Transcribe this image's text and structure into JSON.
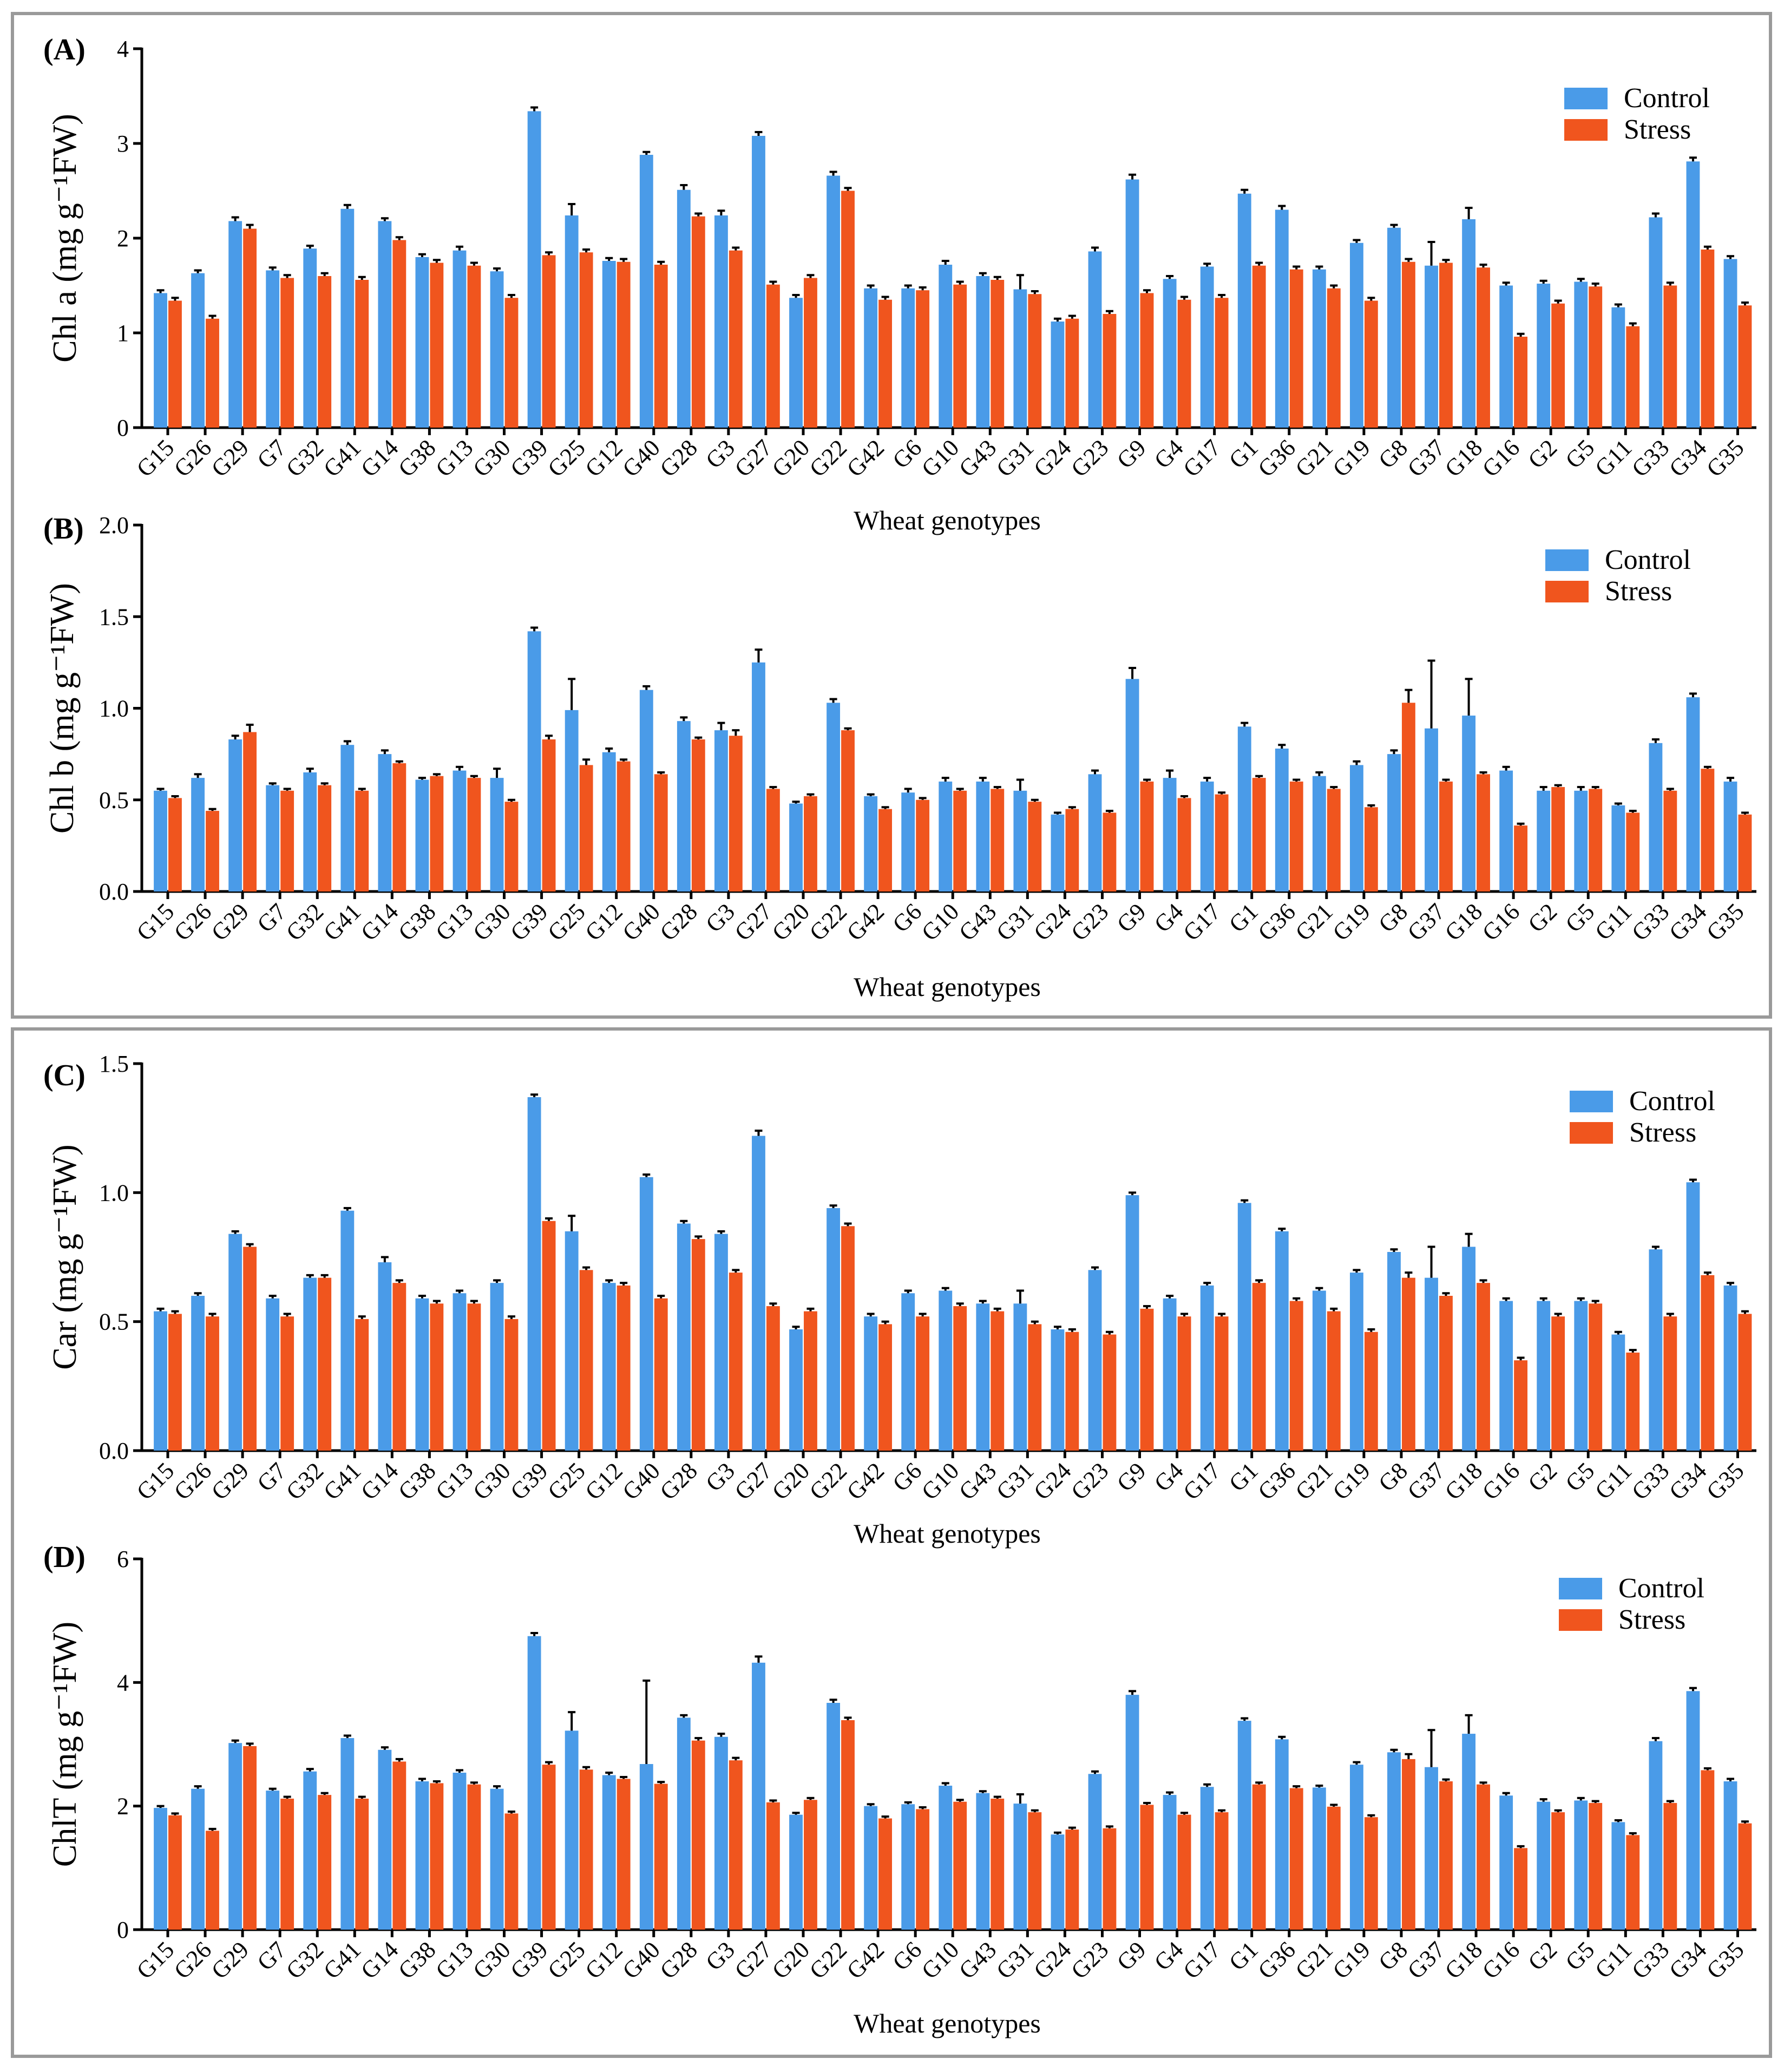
{
  "colors": {
    "control": "#4a9be8",
    "stress": "#f0551e"
  },
  "legend": {
    "control": "Control",
    "stress": "Stress"
  },
  "chart_data": [
    {
      "type": "bar",
      "panel": "(A)",
      "ylabel": "Chl a (mg g⁻¹FW)",
      "xlabel": "Wheat genotypes",
      "ylim": [
        0,
        4
      ],
      "yticks": [
        "0",
        "1",
        "2",
        "3",
        "4"
      ],
      "yticks_values": [
        0,
        1,
        2,
        3,
        4
      ],
      "categories": [
        "G15",
        "G26",
        "G29",
        "G7",
        "G32",
        "G41",
        "G14",
        "G38",
        "G13",
        "G30",
        "G39",
        "G25",
        "G12",
        "G40",
        "G28",
        "G3",
        "G27",
        "G20",
        "G22",
        "G42",
        "G6",
        "G10",
        "G43",
        "G31",
        "G24",
        "G23",
        "G9",
        "G4",
        "G17",
        "G1",
        "G36",
        "G21",
        "G19",
        "G8",
        "G37",
        "G18",
        "G16",
        "G2",
        "G5",
        "G11",
        "G33",
        "G34",
        "G35"
      ],
      "series": [
        {
          "name": "Control",
          "values": [
            1.42,
            1.63,
            2.18,
            1.66,
            1.89,
            2.31,
            2.18,
            1.8,
            1.87,
            1.65,
            3.34,
            2.24,
            1.76,
            2.88,
            2.51,
            2.24,
            3.08,
            1.37,
            2.66,
            1.47,
            1.47,
            1.72,
            1.6,
            1.46,
            1.12,
            1.86,
            2.62,
            1.57,
            1.7,
            2.47,
            2.3,
            1.67,
            1.95,
            2.11,
            1.71,
            2.2,
            1.5,
            1.52,
            1.54,
            1.27,
            2.22,
            2.81,
            1.78
          ],
          "errors": [
            0.03,
            0.03,
            0.04,
            0.03,
            0.03,
            0.04,
            0.03,
            0.03,
            0.04,
            0.03,
            0.04,
            0.12,
            0.03,
            0.03,
            0.05,
            0.05,
            0.04,
            0.03,
            0.04,
            0.03,
            0.03,
            0.04,
            0.03,
            0.15,
            0.03,
            0.04,
            0.05,
            0.03,
            0.03,
            0.04,
            0.04,
            0.03,
            0.03,
            0.03,
            0.25,
            0.12,
            0.03,
            0.03,
            0.03,
            0.03,
            0.04,
            0.04,
            0.03
          ]
        },
        {
          "name": "Stress",
          "values": [
            1.34,
            1.15,
            2.1,
            1.58,
            1.6,
            1.56,
            1.98,
            1.74,
            1.71,
            1.37,
            1.82,
            1.85,
            1.75,
            1.72,
            2.23,
            1.87,
            1.51,
            1.58,
            2.5,
            1.35,
            1.45,
            1.51,
            1.56,
            1.41,
            1.15,
            1.2,
            1.42,
            1.35,
            1.37,
            1.71,
            1.67,
            1.47,
            1.34,
            1.75,
            1.74,
            1.69,
            0.96,
            1.31,
            1.49,
            1.07,
            1.5,
            1.88,
            1.29
          ],
          "errors": [
            0.03,
            0.03,
            0.04,
            0.03,
            0.03,
            0.03,
            0.03,
            0.03,
            0.03,
            0.03,
            0.03,
            0.03,
            0.03,
            0.03,
            0.03,
            0.03,
            0.03,
            0.03,
            0.03,
            0.03,
            0.03,
            0.03,
            0.03,
            0.03,
            0.03,
            0.03,
            0.03,
            0.03,
            0.03,
            0.03,
            0.03,
            0.03,
            0.03,
            0.03,
            0.03,
            0.03,
            0.03,
            0.03,
            0.03,
            0.03,
            0.03,
            0.03,
            0.03
          ]
        }
      ]
    },
    {
      "type": "bar",
      "panel": "(B)",
      "ylabel": "Chl b (mg g⁻¹FW)",
      "xlabel": "Wheat genotypes",
      "ylim": [
        0,
        2.0
      ],
      "yticks": [
        "0.0",
        "0.5",
        "1.0",
        "1.5",
        "2.0"
      ],
      "yticks_values": [
        0,
        0.5,
        1.0,
        1.5,
        2.0
      ],
      "categories": [
        "G15",
        "G26",
        "G29",
        "G7",
        "G32",
        "G41",
        "G14",
        "G38",
        "G13",
        "G30",
        "G39",
        "G25",
        "G12",
        "G40",
        "G28",
        "G3",
        "G27",
        "G20",
        "G22",
        "G42",
        "G6",
        "G10",
        "G43",
        "G31",
        "G24",
        "G23",
        "G9",
        "G4",
        "G17",
        "G1",
        "G36",
        "G21",
        "G19",
        "G8",
        "G37",
        "G18",
        "G16",
        "G2",
        "G5",
        "G11",
        "G33",
        "G34",
        "G35"
      ],
      "series": [
        {
          "name": "Control",
          "values": [
            0.55,
            0.62,
            0.83,
            0.58,
            0.65,
            0.8,
            0.75,
            0.61,
            0.66,
            0.62,
            1.42,
            0.99,
            0.76,
            1.1,
            0.93,
            0.88,
            1.25,
            0.48,
            1.03,
            0.52,
            0.54,
            0.6,
            0.6,
            0.55,
            0.42,
            0.64,
            1.16,
            0.62,
            0.6,
            0.9,
            0.78,
            0.63,
            0.69,
            0.75,
            0.89,
            0.96,
            0.66,
            0.55,
            0.55,
            0.47,
            0.81,
            1.06,
            0.6
          ],
          "errors": [
            0.01,
            0.02,
            0.02,
            0.01,
            0.02,
            0.02,
            0.02,
            0.01,
            0.02,
            0.05,
            0.02,
            0.17,
            0.02,
            0.02,
            0.02,
            0.04,
            0.07,
            0.01,
            0.02,
            0.01,
            0.02,
            0.02,
            0.02,
            0.06,
            0.01,
            0.02,
            0.06,
            0.04,
            0.02,
            0.02,
            0.02,
            0.02,
            0.02,
            0.02,
            0.37,
            0.2,
            0.02,
            0.02,
            0.02,
            0.01,
            0.02,
            0.02,
            0.02
          ]
        },
        {
          "name": "Stress",
          "values": [
            0.51,
            0.44,
            0.87,
            0.55,
            0.58,
            0.55,
            0.7,
            0.63,
            0.62,
            0.49,
            0.83,
            0.69,
            0.71,
            0.64,
            0.83,
            0.85,
            0.56,
            0.52,
            0.88,
            0.45,
            0.5,
            0.55,
            0.56,
            0.49,
            0.45,
            0.43,
            0.6,
            0.51,
            0.53,
            0.62,
            0.6,
            0.56,
            0.46,
            1.03,
            0.6,
            0.64,
            0.36,
            0.57,
            0.56,
            0.43,
            0.55,
            0.67,
            0.42
          ],
          "errors": [
            0.01,
            0.01,
            0.04,
            0.01,
            0.01,
            0.01,
            0.01,
            0.01,
            0.01,
            0.01,
            0.02,
            0.03,
            0.01,
            0.01,
            0.01,
            0.03,
            0.01,
            0.01,
            0.01,
            0.01,
            0.01,
            0.01,
            0.01,
            0.01,
            0.01,
            0.01,
            0.01,
            0.01,
            0.01,
            0.01,
            0.01,
            0.01,
            0.01,
            0.07,
            0.01,
            0.01,
            0.01,
            0.01,
            0.01,
            0.01,
            0.01,
            0.01,
            0.01
          ]
        }
      ]
    },
    {
      "type": "bar",
      "panel": "(C)",
      "ylabel": "Car (mg g⁻¹FW)",
      "xlabel": "Wheat genotypes",
      "ylim": [
        0,
        1.5
      ],
      "yticks": [
        "0.0",
        "0.5",
        "1.0",
        "1.5"
      ],
      "yticks_values": [
        0,
        0.5,
        1.0,
        1.5
      ],
      "categories": [
        "G15",
        "G26",
        "G29",
        "G7",
        "G32",
        "G41",
        "G14",
        "G38",
        "G13",
        "G30",
        "G39",
        "G25",
        "G12",
        "G40",
        "G28",
        "G3",
        "G27",
        "G20",
        "G22",
        "G42",
        "G6",
        "G10",
        "G43",
        "G31",
        "G24",
        "G23",
        "G9",
        "G4",
        "G17",
        "G1",
        "G36",
        "G21",
        "G19",
        "G8",
        "G37",
        "G18",
        "G16",
        "G2",
        "G5",
        "G11",
        "G33",
        "G34",
        "G35"
      ],
      "series": [
        {
          "name": "Control",
          "values": [
            0.54,
            0.6,
            0.84,
            0.59,
            0.67,
            0.93,
            0.73,
            0.59,
            0.61,
            0.65,
            1.37,
            0.85,
            0.65,
            1.06,
            0.88,
            0.84,
            1.22,
            0.47,
            0.94,
            0.52,
            0.61,
            0.62,
            0.57,
            0.57,
            0.47,
            0.7,
            0.99,
            0.59,
            0.64,
            0.96,
            0.85,
            0.62,
            0.69,
            0.77,
            0.67,
            0.79,
            0.58,
            0.58,
            0.58,
            0.45,
            0.78,
            1.04,
            0.64
          ],
          "errors": [
            0.01,
            0.01,
            0.01,
            0.01,
            0.01,
            0.01,
            0.02,
            0.01,
            0.01,
            0.01,
            0.01,
            0.06,
            0.01,
            0.01,
            0.01,
            0.01,
            0.02,
            0.01,
            0.01,
            0.01,
            0.01,
            0.01,
            0.01,
            0.05,
            0.01,
            0.01,
            0.01,
            0.01,
            0.01,
            0.01,
            0.01,
            0.01,
            0.01,
            0.01,
            0.12,
            0.05,
            0.01,
            0.01,
            0.01,
            0.01,
            0.01,
            0.01,
            0.01
          ]
        },
        {
          "name": "Stress",
          "values": [
            0.53,
            0.52,
            0.79,
            0.52,
            0.67,
            0.51,
            0.65,
            0.57,
            0.57,
            0.51,
            0.89,
            0.7,
            0.64,
            0.59,
            0.82,
            0.69,
            0.56,
            0.54,
            0.87,
            0.49,
            0.52,
            0.56,
            0.54,
            0.49,
            0.46,
            0.45,
            0.55,
            0.52,
            0.52,
            0.65,
            0.58,
            0.54,
            0.46,
            0.67,
            0.6,
            0.65,
            0.35,
            0.52,
            0.57,
            0.38,
            0.52,
            0.68,
            0.53
          ],
          "errors": [
            0.01,
            0.01,
            0.01,
            0.01,
            0.01,
            0.01,
            0.01,
            0.01,
            0.01,
            0.01,
            0.01,
            0.01,
            0.01,
            0.01,
            0.01,
            0.01,
            0.01,
            0.01,
            0.01,
            0.01,
            0.01,
            0.01,
            0.01,
            0.01,
            0.01,
            0.01,
            0.01,
            0.01,
            0.01,
            0.01,
            0.01,
            0.01,
            0.01,
            0.02,
            0.01,
            0.01,
            0.01,
            0.01,
            0.01,
            0.01,
            0.01,
            0.01,
            0.01
          ]
        }
      ]
    },
    {
      "type": "bar",
      "panel": "(D)",
      "ylabel": "ChlT (mg g⁻¹FW)",
      "xlabel": "Wheat genotypes",
      "ylim": [
        0,
        6
      ],
      "yticks": [
        "0",
        "2",
        "4",
        "6"
      ],
      "yticks_values": [
        0,
        2,
        4,
        6
      ],
      "categories": [
        "G15",
        "G26",
        "G29",
        "G7",
        "G32",
        "G41",
        "G14",
        "G38",
        "G13",
        "G30",
        "G39",
        "G25",
        "G12",
        "G40",
        "G28",
        "G3",
        "G27",
        "G20",
        "G22",
        "G42",
        "G6",
        "G10",
        "G43",
        "G31",
        "G24",
        "G23",
        "G9",
        "G4",
        "G17",
        "G1",
        "G36",
        "G21",
        "G19",
        "G8",
        "G37",
        "G18",
        "G16",
        "G2",
        "G5",
        "G11",
        "G33",
        "G34",
        "G35"
      ],
      "series": [
        {
          "name": "Control",
          "values": [
            1.97,
            2.28,
            3.02,
            2.25,
            2.56,
            3.1,
            2.91,
            2.4,
            2.54,
            2.28,
            4.75,
            3.22,
            2.5,
            2.68,
            3.43,
            3.12,
            4.32,
            1.86,
            3.67,
            2.0,
            2.03,
            2.33,
            2.21,
            2.04,
            1.54,
            2.52,
            3.8,
            2.18,
            2.31,
            3.38,
            3.08,
            2.3,
            2.67,
            2.87,
            2.63,
            3.17,
            2.17,
            2.07,
            2.09,
            1.74,
            3.05,
            3.86,
            2.4
          ],
          "errors": [
            0.03,
            0.04,
            0.04,
            0.03,
            0.04,
            0.04,
            0.04,
            0.04,
            0.04,
            0.04,
            0.05,
            0.3,
            0.04,
            1.35,
            0.04,
            0.05,
            0.1,
            0.03,
            0.05,
            0.03,
            0.03,
            0.04,
            0.03,
            0.15,
            0.03,
            0.04,
            0.06,
            0.04,
            0.04,
            0.04,
            0.04,
            0.03,
            0.04,
            0.04,
            0.6,
            0.3,
            0.04,
            0.04,
            0.04,
            0.03,
            0.05,
            0.05,
            0.04
          ]
        },
        {
          "name": "Stress",
          "values": [
            1.85,
            1.6,
            2.97,
            2.12,
            2.18,
            2.12,
            2.72,
            2.37,
            2.35,
            1.88,
            2.67,
            2.59,
            2.44,
            2.36,
            3.06,
            2.74,
            2.06,
            2.1,
            3.39,
            1.8,
            1.95,
            2.07,
            2.12,
            1.9,
            1.62,
            1.64,
            2.02,
            1.86,
            1.9,
            2.35,
            2.29,
            1.99,
            1.82,
            2.76,
            2.4,
            2.35,
            1.32,
            1.9,
            2.05,
            1.53,
            2.05,
            2.58,
            1.72
          ],
          "errors": [
            0.03,
            0.03,
            0.04,
            0.03,
            0.03,
            0.03,
            0.04,
            0.03,
            0.03,
            0.03,
            0.04,
            0.04,
            0.03,
            0.03,
            0.04,
            0.04,
            0.03,
            0.03,
            0.04,
            0.03,
            0.03,
            0.03,
            0.03,
            0.03,
            0.03,
            0.03,
            0.03,
            0.03,
            0.03,
            0.03,
            0.03,
            0.03,
            0.03,
            0.08,
            0.03,
            0.03,
            0.03,
            0.03,
            0.03,
            0.03,
            0.03,
            0.03,
            0.03
          ]
        }
      ]
    }
  ]
}
